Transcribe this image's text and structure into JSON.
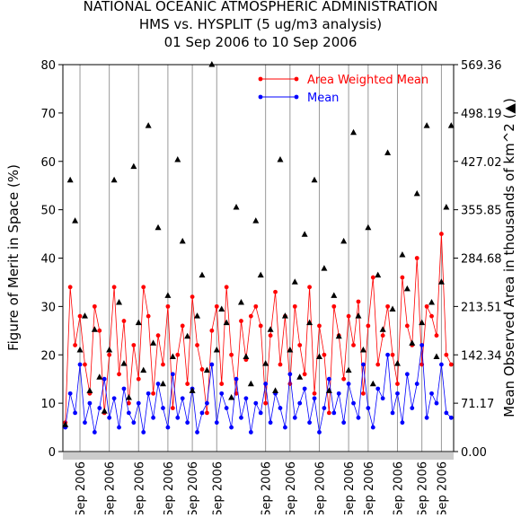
{
  "chart_data": {
    "type": "line",
    "title": "NATIONAL OCEANIC ATMOSPHERIC ADMINISTRATION",
    "subtitle": "HMS vs. HYSPLIT (5 ug/m3 analysis)",
    "date_range": "01 Sep 2006 to 10 Sep 2006",
    "y_label": "Figure of Merit in Space (%)",
    "y2_label": "Mean Observed Area in thousands of km^2 (▲)",
    "categories": [
      null,
      null,
      null,
      "Sep 2006",
      null,
      null,
      null,
      null,
      null,
      "Sep 2006",
      null,
      null,
      null,
      null,
      null,
      "Sep 2006",
      null,
      null,
      null,
      null,
      null,
      "Sep 2006",
      null,
      null,
      null,
      null,
      "Sep 2006",
      null,
      null,
      null,
      null,
      "Sep 2006",
      null,
      null,
      null,
      null,
      null,
      null,
      null,
      null,
      null,
      "Sep 2006",
      null,
      null,
      null,
      null,
      "Sep 2006",
      null,
      null,
      null,
      null,
      null,
      "Sep 2006",
      null,
      null,
      null,
      null,
      null,
      "Sep 2006",
      null,
      null,
      null,
      "Sep 2006",
      null,
      null,
      null,
      null,
      null,
      "Sep 2006",
      null,
      null,
      null,
      null,
      "Sep 2006",
      null,
      null,
      null,
      "Sep 2006",
      null,
      null
    ],
    "ylim": [
      0,
      80
    ],
    "yticks": [
      0,
      10,
      20,
      30,
      40,
      50,
      60,
      70,
      80
    ],
    "y2lim": [
      0,
      569.36
    ],
    "y2ticks": [
      {
        "value": 0,
        "label": "0.00"
      },
      71.17,
      142.34,
      213.51,
      284.68,
      355.85,
      427.02,
      498.19,
      569.36
    ],
    "legend": "top-right",
    "series": [
      {
        "name": "Area Weighted Mean",
        "color": "#ff0000",
        "marker": "circle",
        "values": [
          6,
          34,
          22,
          28,
          18,
          12,
          30,
          25,
          8,
          20,
          34,
          16,
          27,
          10,
          22,
          15,
          34,
          28,
          12,
          24,
          18,
          30,
          9,
          20,
          26,
          14,
          32,
          22,
          17,
          8,
          25,
          30,
          14,
          34,
          20,
          12,
          27,
          19,
          28,
          30,
          26,
          10,
          24,
          33,
          18,
          28,
          14,
          30,
          22,
          16,
          34,
          12,
          26,
          20,
          8,
          30,
          24,
          15,
          28,
          22,
          31,
          12,
          26,
          36,
          18,
          24,
          30,
          20,
          14,
          36,
          26,
          22,
          40,
          18,
          30,
          28,
          24,
          45,
          20,
          18
        ]
      },
      {
        "name": "Mean",
        "color": "#0000ff",
        "marker": "circle",
        "values": [
          5,
          12,
          8,
          18,
          6,
          10,
          4,
          9,
          15,
          7,
          11,
          5,
          13,
          8,
          6,
          10,
          4,
          12,
          7,
          14,
          9,
          5,
          16,
          7,
          11,
          6,
          13,
          4,
          8,
          10,
          18,
          6,
          12,
          9,
          5,
          15,
          7,
          11,
          4,
          10,
          8,
          14,
          6,
          12,
          9,
          5,
          16,
          7,
          10,
          13,
          6,
          11,
          4,
          9,
          15,
          8,
          12,
          6,
          14,
          10,
          7,
          18,
          9,
          5,
          13,
          11,
          20,
          8,
          12,
          6,
          16,
          9,
          14,
          22,
          7,
          12,
          10,
          18,
          8,
          7
        ]
      },
      {
        "color": "#000000",
        "marker": "triangle",
        "axis": "y2",
        "values": [
          40,
          400,
          340,
          150,
          200,
          90,
          180,
          110,
          60,
          150,
          400,
          220,
          130,
          80,
          420,
          190,
          120,
          480,
          160,
          330,
          100,
          230,
          140,
          430,
          310,
          170,
          90,
          200,
          260,
          120,
          570,
          150,
          210,
          190,
          80,
          360,
          220,
          140,
          100,
          340,
          260,
          130,
          180,
          90,
          430,
          200,
          150,
          250,
          110,
          320,
          190,
          400,
          140,
          270,
          90,
          230,
          170,
          310,
          120,
          470,
          200,
          150,
          330,
          100,
          260,
          180,
          440,
          210,
          130,
          290,
          240,
          160,
          380,
          190,
          480,
          220,
          140,
          250,
          360,
          480
        ]
      }
    ]
  }
}
